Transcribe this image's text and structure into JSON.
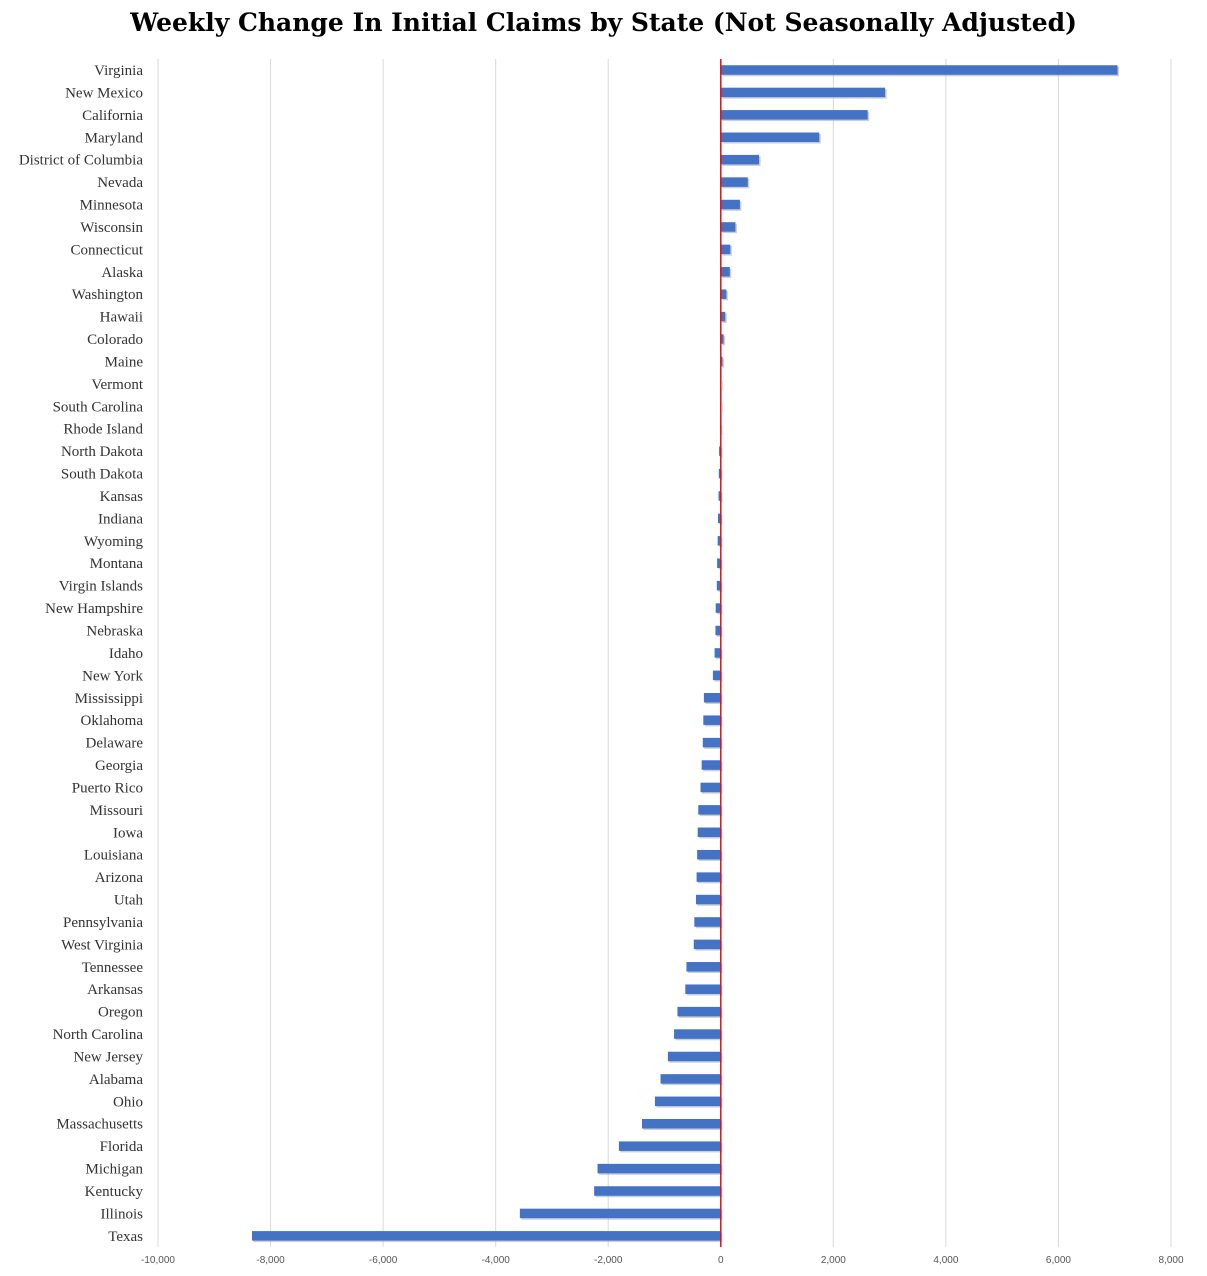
{
  "chart_data": {
    "type": "bar",
    "orientation": "horizontal",
    "title": "Weekly Change In Initial Claims by State (Not Seasonally Adjusted)",
    "xlabel": "",
    "ylabel": "",
    "xlim": [
      -10000,
      8000
    ],
    "xticks": [
      -10000,
      -8000,
      -6000,
      -4000,
      -2000,
      0,
      2000,
      4000,
      6000,
      8000
    ],
    "xtick_labels": [
      "-10,000",
      "-8,000",
      "-6,000",
      "-4,000",
      "-2,000",
      "0",
      "2,000",
      "4,000",
      "6,000",
      "8,000"
    ],
    "grid": "vertical",
    "zero_line": true,
    "bar_color": "#4472C4",
    "zero_line_color": "#E0101A",
    "grid_color": "#D9D9D9",
    "categories": [
      "Virginia",
      "New Mexico",
      "California",
      "Maryland",
      "District of Columbia",
      "Nevada",
      "Minnesota",
      "Wisconsin",
      "Connecticut",
      "Alaska",
      "Washington",
      "Hawaii",
      "Colorado",
      "Maine",
      "Vermont",
      "South Carolina",
      "Rhode Island",
      "North Dakota",
      "South Dakota",
      "Kansas",
      "Indiana",
      "Wyoming",
      "Montana",
      "Virgin Islands",
      "New Hampshire",
      "Nebraska",
      "Idaho",
      "New York",
      "Mississippi",
      "Oklahoma",
      "Delaware",
      "Georgia",
      "Puerto Rico",
      "Missouri",
      "Iowa",
      "Louisiana",
      "Arizona",
      "Utah",
      "Pennsylvania",
      "West Virginia",
      "Tennessee",
      "Arkansas",
      "Oregon",
      "North Carolina",
      "New Jersey",
      "Alabama",
      "Ohio",
      "Massachusetts",
      "Florida",
      "Michigan",
      "Kentucky",
      "Illinois",
      "Texas"
    ],
    "values": [
      7050,
      2920,
      2610,
      1750,
      680,
      480,
      340,
      260,
      170,
      160,
      100,
      80,
      50,
      30,
      10,
      -5,
      -10,
      -30,
      -35,
      -40,
      -50,
      -55,
      -65,
      -70,
      -90,
      -95,
      -110,
      -140,
      -300,
      -310,
      -320,
      -340,
      -360,
      -400,
      -410,
      -420,
      -430,
      -440,
      -470,
      -480,
      -610,
      -630,
      -770,
      -830,
      -940,
      -1070,
      -1170,
      -1400,
      -1810,
      -2190,
      -2250,
      -3570,
      -8330
    ]
  }
}
